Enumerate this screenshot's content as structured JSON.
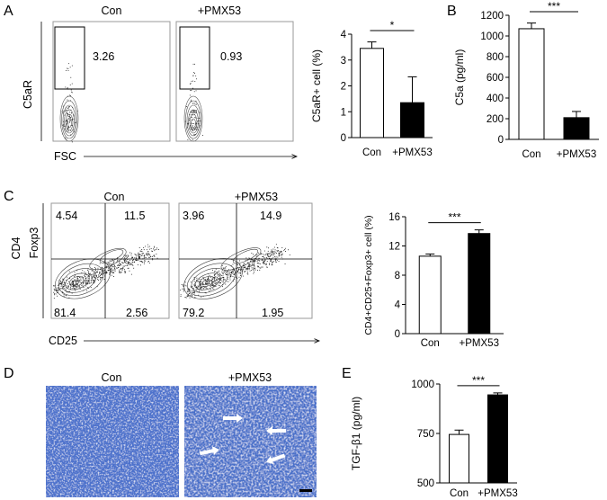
{
  "panel_labels": [
    "A",
    "B",
    "C",
    "D",
    "E"
  ],
  "flow_a": {
    "groups": [
      "Con",
      "+PMX53"
    ],
    "gate_values": [
      "3.26",
      "0.93"
    ],
    "y_label": "C5aR",
    "x_label": "FSC"
  },
  "flow_c": {
    "groups": [
      "Con",
      "+PMX53"
    ],
    "y_label_outer": "CD4",
    "y_label_inner": "Foxp3",
    "x_label": "CD25",
    "quadrants": [
      {
        "ul": "4.54",
        "ur": "11.5",
        "ll": "81.4",
        "lr": "2.56"
      },
      {
        "ul": "3.96",
        "ur": "14.9",
        "ll": "79.2",
        "lr": "1.95"
      }
    ]
  },
  "micro_d": {
    "groups": [
      "Con",
      "+PMX53"
    ]
  },
  "colors": {
    "stain": "#4d72cc",
    "arrow": "#ffffff",
    "bar_treated": "#000000"
  },
  "chart_data": [
    {
      "panel": "A",
      "type": "bar",
      "categories": [
        "Con",
        "+PMX53"
      ],
      "values": [
        3.45,
        1.35
      ],
      "errors": [
        0.25,
        1.0
      ],
      "ylabel": "C5aR+ cell (%)",
      "ylim": [
        0,
        4
      ],
      "ticks": [
        0,
        1,
        2,
        3,
        4
      ],
      "significance": "*"
    },
    {
      "panel": "B",
      "type": "bar",
      "categories": [
        "Con",
        "+PMX53"
      ],
      "values": [
        1070,
        210
      ],
      "errors": [
        55,
        60
      ],
      "ylabel": "C5a (pg/ml)",
      "ylim": [
        0,
        1200
      ],
      "ticks": [
        0,
        200,
        400,
        600,
        800,
        1000,
        1200
      ],
      "significance": "***"
    },
    {
      "panel": "C",
      "type": "bar",
      "categories": [
        "Con",
        "+PMX53"
      ],
      "values": [
        10.6,
        13.7
      ],
      "errors": [
        0.3,
        0.5
      ],
      "ylabel": "CD4+CD25+Foxp3+ cell (%)",
      "ylim": [
        0,
        16
      ],
      "ticks": [
        0,
        4,
        8,
        12,
        16
      ],
      "significance": "***"
    },
    {
      "panel": "E",
      "type": "bar",
      "categories": [
        "Con",
        "+PMX53"
      ],
      "values": [
        745,
        945
      ],
      "errors": [
        22,
        10
      ],
      "ylabel": "TGF-β1 (pg/ml)",
      "ylim": [
        500,
        1000
      ],
      "ticks": [
        500,
        750,
        1000
      ],
      "significance": "***"
    }
  ]
}
